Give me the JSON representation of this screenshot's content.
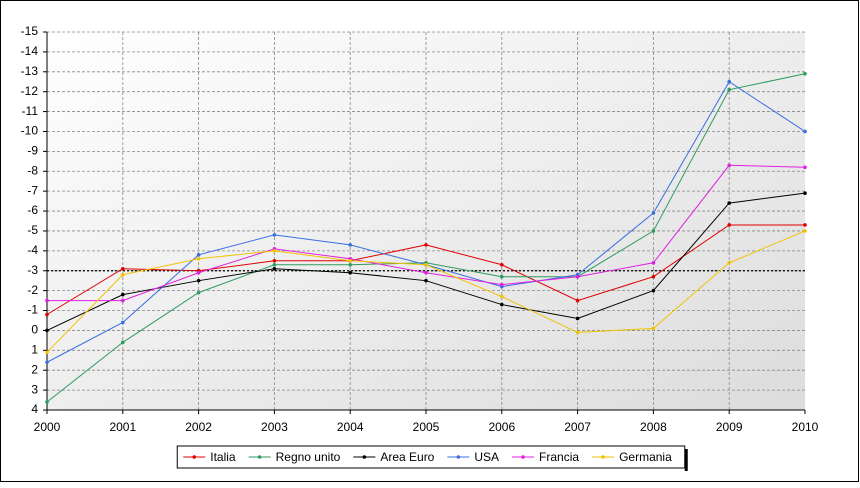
{
  "chart_data": {
    "type": "line",
    "categories": [
      "2000",
      "2001",
      "2002",
      "2003",
      "2004",
      "2005",
      "2006",
      "2007",
      "2008",
      "2009",
      "2010"
    ],
    "series": [
      {
        "name": "Italia",
        "color": "#e00000",
        "values": [
          -0.8,
          -3.1,
          -3.0,
          -3.5,
          -3.5,
          -4.3,
          -3.3,
          -1.5,
          -2.7,
          -5.3,
          -5.3
        ]
      },
      {
        "name": "Regno unito",
        "color": "#2e9b5e",
        "values": [
          3.6,
          0.6,
          -1.9,
          -3.3,
          -3.3,
          -3.4,
          -2.7,
          -2.7,
          -5.0,
          -12.1,
          -12.9
        ]
      },
      {
        "name": "Area Euro",
        "color": "#000000",
        "values": [
          0.0,
          -1.8,
          -2.5,
          -3.1,
          -2.9,
          -2.5,
          -1.3,
          -0.6,
          -2.0,
          -6.4,
          -6.9
        ]
      },
      {
        "name": "USA",
        "color": "#3a6fe0",
        "values": [
          1.6,
          -0.4,
          -3.8,
          -4.8,
          -4.3,
          -3.3,
          -2.2,
          -2.8,
          -5.9,
          -12.5,
          -10.0
        ]
      },
      {
        "name": "Francia",
        "color": "#e020e0",
        "values": [
          -1.5,
          -1.5,
          -2.9,
          -4.1,
          -3.6,
          -2.9,
          -2.3,
          -2.7,
          -3.4,
          -8.3,
          -8.2
        ]
      },
      {
        "name": "Germania",
        "color": "#f2c200",
        "values": [
          1.1,
          -2.8,
          -3.6,
          -4.0,
          -3.5,
          -3.3,
          -1.7,
          0.1,
          -0.1,
          -3.4,
          -5.0
        ]
      }
    ],
    "ylim": [
      4,
      -15
    ],
    "yticks": [
      -15,
      -14,
      -13,
      -12,
      -11,
      -10,
      -9,
      -8,
      -7,
      -6,
      -5,
      -4,
      -3,
      -2,
      -1,
      0,
      1,
      2,
      3,
      4
    ],
    "reference_line": -3,
    "grid": true,
    "legend": "bottom"
  }
}
